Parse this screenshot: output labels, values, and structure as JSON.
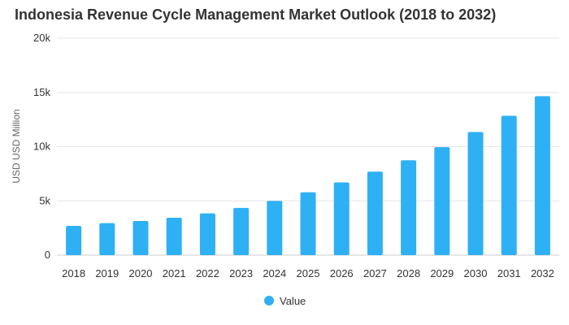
{
  "chart_data": {
    "type": "bar",
    "title": "Indonesia Revenue Cycle Management Market Outlook (2018 to 2032)",
    "xlabel": "",
    "ylabel": "USD USD Million",
    "ylim": [
      0,
      20000
    ],
    "yticks": [
      0,
      5000,
      10000,
      15000,
      20000
    ],
    "ytick_labels": [
      "0",
      "5k",
      "10k",
      "15k",
      "20k"
    ],
    "grid": true,
    "legend_position": "bottom-center",
    "categories": [
      "2018",
      "2019",
      "2020",
      "2021",
      "2022",
      "2023",
      "2024",
      "2025",
      "2026",
      "2027",
      "2028",
      "2029",
      "2030",
      "2031",
      "2032"
    ],
    "series": [
      {
        "name": "Value",
        "color": "#2eb0f5",
        "values": [
          2700,
          2950,
          3150,
          3450,
          3850,
          4350,
          5000,
          5800,
          6700,
          7700,
          8750,
          9950,
          11350,
          12850,
          14650
        ]
      }
    ]
  }
}
